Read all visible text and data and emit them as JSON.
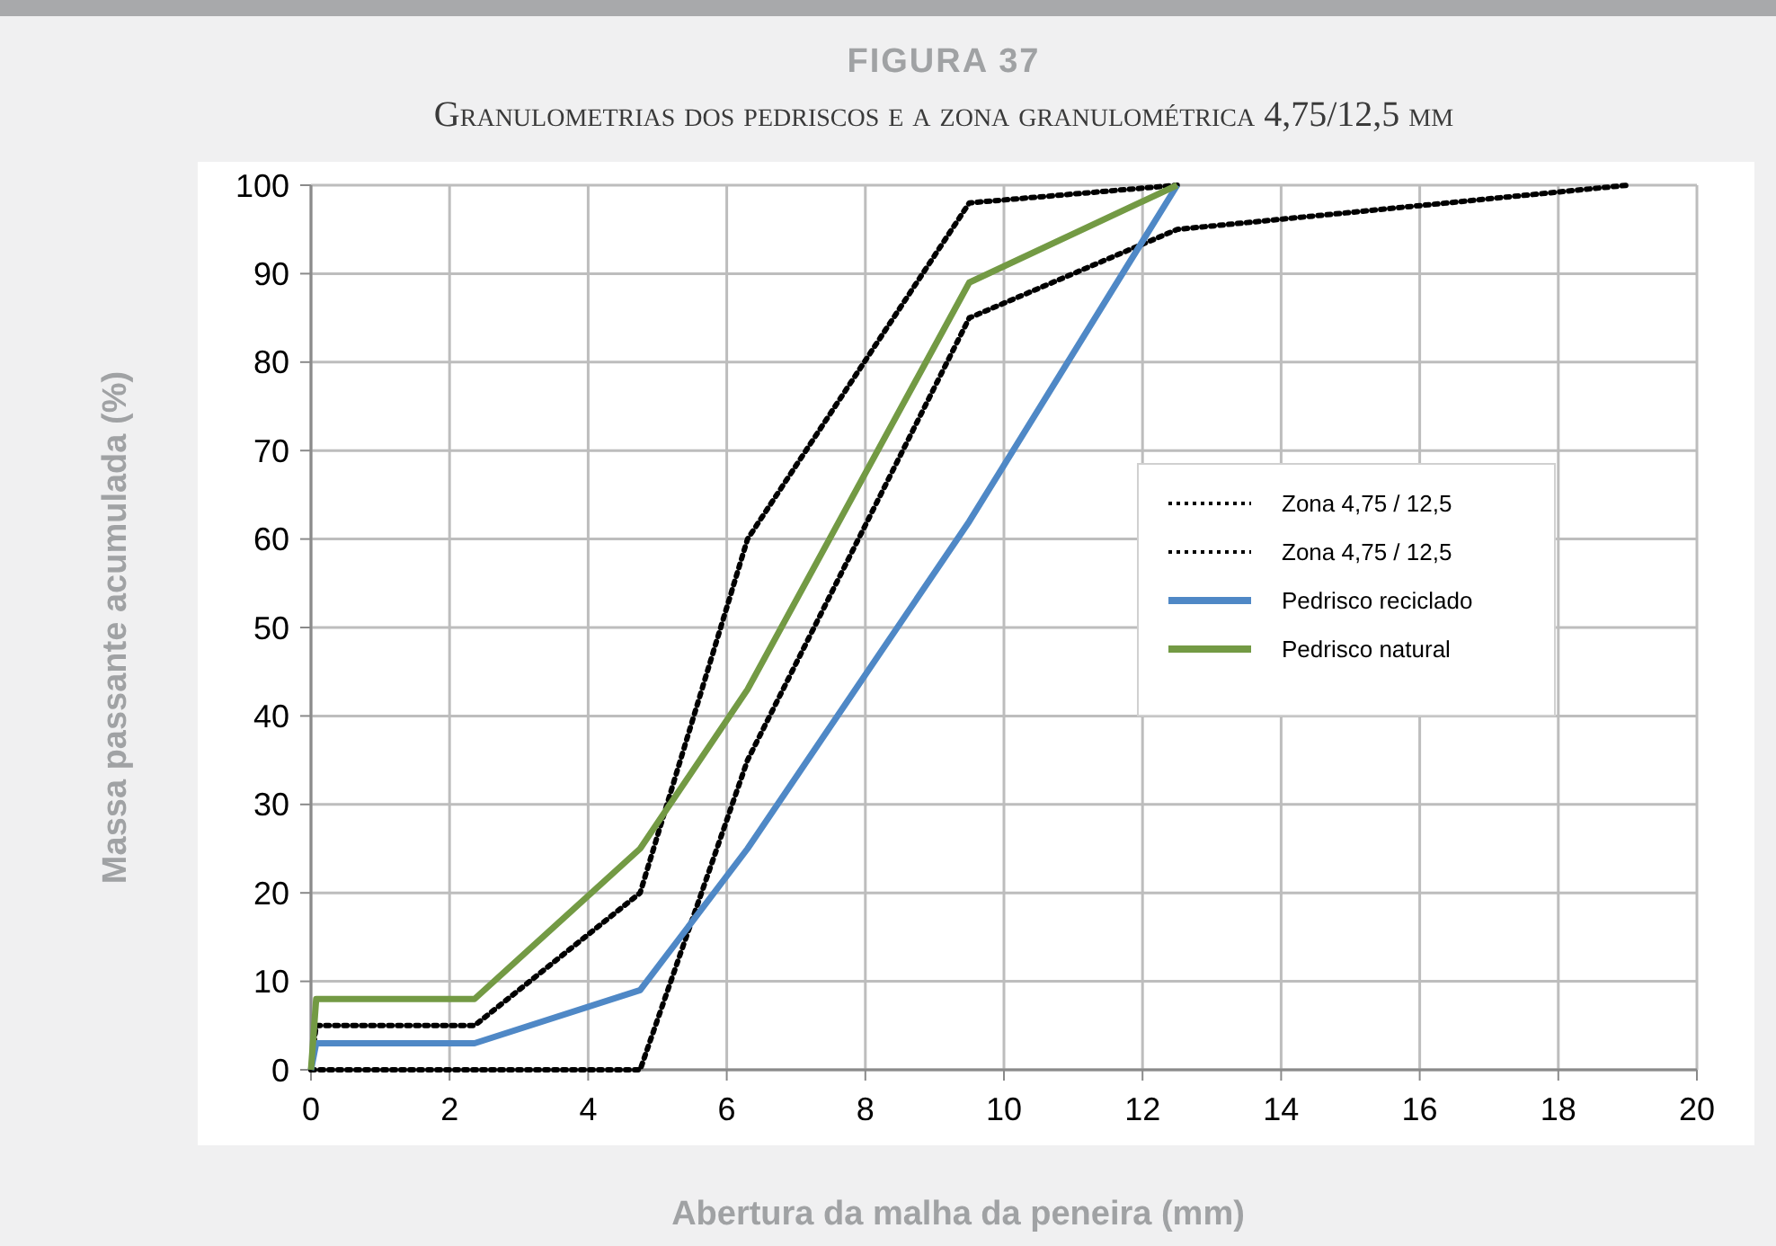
{
  "chart_data": {
    "type": "line",
    "title": "FIGURA 37",
    "subtitle": "Granulometrias dos pedriscos e a zona granulométrica 4,75/12,5 mm",
    "xlabel": "Abertura da malha da peneira (mm)",
    "ylabel": "Massa passante acumulada (%)",
    "series": [
      {
        "name": "Zona 4,75 / 12,5",
        "color": "#000000",
        "line_style": "dotted",
        "x": [
          0,
          0.075,
          2.36,
          4.75,
          6.3,
          9.5,
          12.5
        ],
        "values": [
          0,
          5,
          5,
          20,
          60,
          98,
          100
        ]
      },
      {
        "name": "Zona 4,75 / 12,5",
        "color": "#000000",
        "line_style": "dotted",
        "x": [
          0,
          2.36,
          4.75,
          6.3,
          9.5,
          12.5,
          19
        ],
        "values": [
          0,
          0,
          0,
          35,
          85,
          95,
          100
        ]
      },
      {
        "name": "Pedrisco reciclado",
        "color": "#4f88c6",
        "line_style": "solid",
        "x": [
          0,
          0.075,
          2.36,
          4.75,
          6.3,
          9.5,
          12.5
        ],
        "values": [
          0,
          3,
          3,
          9,
          25,
          62,
          100
        ]
      },
      {
        "name": "Pedrisco natural",
        "color": "#739a44",
        "line_style": "solid",
        "x": [
          0,
          0.075,
          2.36,
          4.75,
          6.3,
          9.5,
          12.5
        ],
        "values": [
          0,
          8,
          8,
          25,
          43,
          89,
          100
        ]
      }
    ],
    "xlim": [
      0,
      20
    ],
    "xticks": [
      0,
      2,
      4,
      6,
      8,
      10,
      12,
      14,
      16,
      18,
      20
    ],
    "ylim": [
      0,
      100
    ],
    "yticks": [
      0,
      10,
      20,
      30,
      40,
      50,
      60,
      70,
      80,
      90,
      100
    ],
    "grid": true,
    "legend": "right",
    "marker": "none"
  }
}
